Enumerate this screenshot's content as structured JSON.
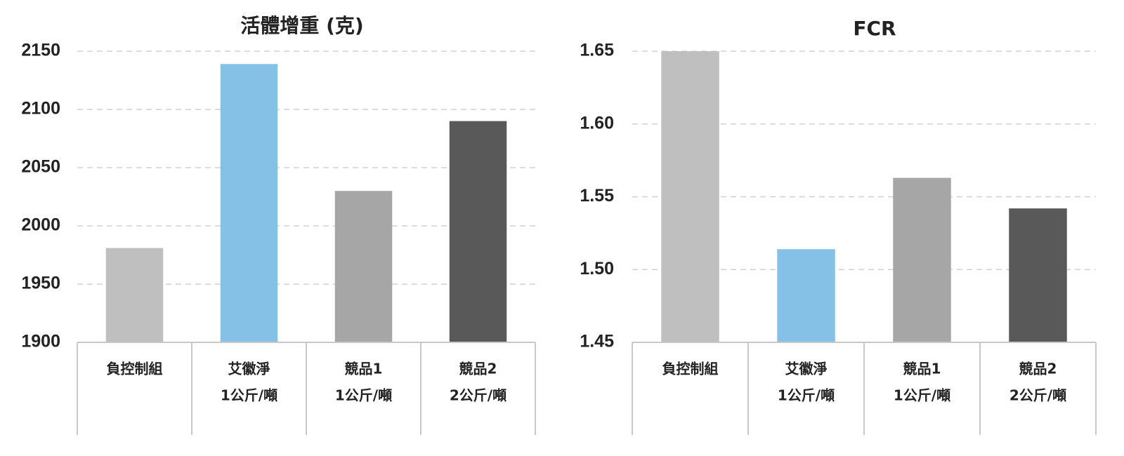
{
  "chart_data": [
    {
      "type": "bar",
      "title": "活體增重 (克)",
      "categories": [
        [
          "負控制組"
        ],
        [
          "艾徽淨",
          "1公斤/噸"
        ],
        [
          "競品1",
          "1公斤/噸"
        ],
        [
          "競品2",
          "2公斤/噸"
        ]
      ],
      "values": [
        1981,
        2139,
        2030,
        2090
      ],
      "colors": [
        "#bfbfbf",
        "#85c1e6",
        "#a6a6a6",
        "#595959"
      ],
      "ylim": [
        1900,
        2150
      ],
      "yticks": [
        1900,
        1950,
        2000,
        2050,
        2100,
        2150
      ],
      "grid": true
    },
    {
      "type": "bar",
      "title": "FCR",
      "categories": [
        [
          "負控制組"
        ],
        [
          "艾徽淨",
          "1公斤/噸"
        ],
        [
          "競品1",
          "1公斤/噸"
        ],
        [
          "競品2",
          "2公斤/噸"
        ]
      ],
      "values": [
        1.65,
        1.514,
        1.563,
        1.542
      ],
      "colors": [
        "#bfbfbf",
        "#85c1e6",
        "#a6a6a6",
        "#595959"
      ],
      "ylim": [
        1.45,
        1.65
      ],
      "yticks": [
        1.45,
        {
          "value": 1.5,
          "label": "1.50"
        },
        1.55,
        {
          "value": 1.6,
          "label": "1.60"
        },
        1.65
      ],
      "grid": true
    }
  ]
}
